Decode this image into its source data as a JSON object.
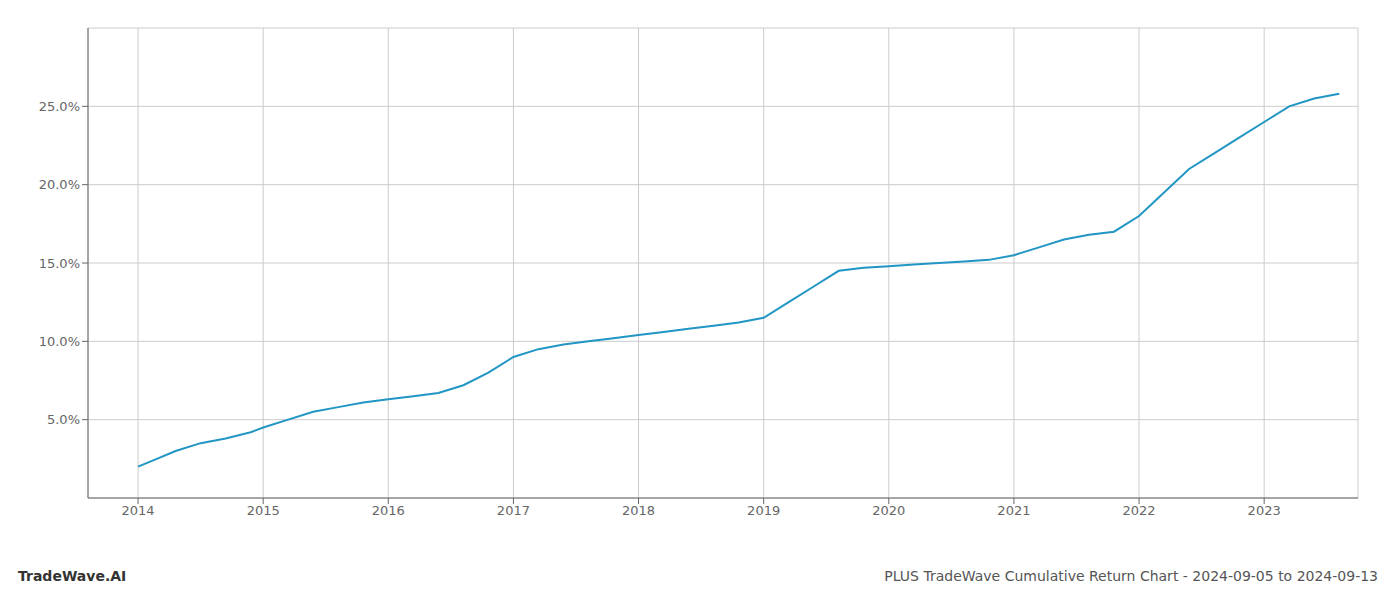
{
  "chart_data": {
    "type": "line",
    "title": "PLUS TradeWave Cumulative Return Chart - 2024-09-05 to 2024-09-13",
    "annotations": [
      "TradeWave.AI"
    ],
    "x": [
      2014.0,
      2014.15,
      2014.3,
      2014.5,
      2014.7,
      2014.9,
      2015.0,
      2015.2,
      2015.4,
      2015.6,
      2015.8,
      2016.0,
      2016.2,
      2016.4,
      2016.6,
      2016.8,
      2017.0,
      2017.2,
      2017.4,
      2017.6,
      2017.8,
      2018.0,
      2018.2,
      2018.4,
      2018.6,
      2018.8,
      2019.0,
      2019.2,
      2019.4,
      2019.6,
      2019.8,
      2020.0,
      2020.2,
      2020.4,
      2020.6,
      2020.8,
      2021.0,
      2021.2,
      2021.4,
      2021.6,
      2021.8,
      2022.0,
      2022.2,
      2022.4,
      2022.6,
      2022.8,
      2023.0,
      2023.2,
      2023.4,
      2023.6
    ],
    "values": [
      2.0,
      2.5,
      3.0,
      3.5,
      3.8,
      4.2,
      4.5,
      5.0,
      5.5,
      5.8,
      6.1,
      6.3,
      6.5,
      6.7,
      7.2,
      8.0,
      9.0,
      9.5,
      9.8,
      10.0,
      10.2,
      10.4,
      10.6,
      10.8,
      11.0,
      11.2,
      11.5,
      12.5,
      13.5,
      14.5,
      14.7,
      14.8,
      14.9,
      15.0,
      15.1,
      15.2,
      15.5,
      16.0,
      16.5,
      16.8,
      17.0,
      18.0,
      19.5,
      21.0,
      22.0,
      23.0,
      24.0,
      25.0,
      25.5,
      25.8
    ],
    "color": "#2196c4",
    "xlim": [
      2013.6,
      2023.75
    ],
    "xticks": [
      2014,
      2015,
      2016,
      2017,
      2018,
      2019,
      2020,
      2021,
      2022,
      2023
    ],
    "ylim": [
      0,
      30
    ],
    "yticks": [
      {
        "value": 5.0,
        "label": "5.0%"
      },
      {
        "value": 10.0,
        "label": "10.0%"
      },
      {
        "value": 15.0,
        "label": "15.0%"
      },
      {
        "value": 20.0,
        "label": "20.0%"
      },
      {
        "value": 25.0,
        "label": "25.0%"
      }
    ],
    "grid": true
  }
}
